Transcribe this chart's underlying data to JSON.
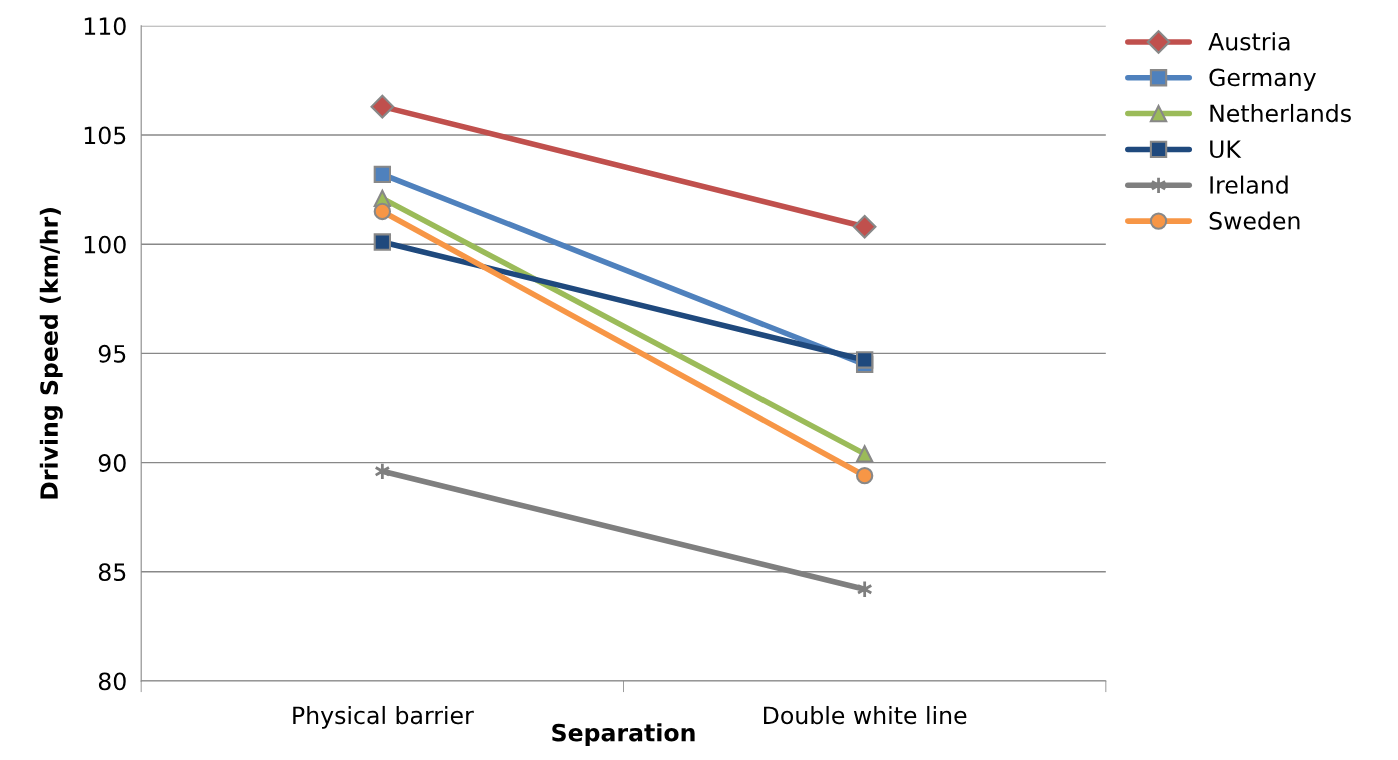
{
  "chart_data": {
    "type": "line",
    "xlabel": "Separation",
    "ylabel": "Driving Speed (km/hr)",
    "categories": [
      "Physical barrier",
      "Double white line"
    ],
    "series": [
      {
        "name": "Austria",
        "color": "#c0504d",
        "marker": "diamond",
        "values": [
          106.3,
          100.8
        ]
      },
      {
        "name": "Germany",
        "color": "#4f81bd",
        "marker": "square",
        "values": [
          103.2,
          94.5
        ]
      },
      {
        "name": "Netherlands",
        "color": "#9bbb59",
        "marker": "triangle",
        "values": [
          102.1,
          90.4
        ]
      },
      {
        "name": "UK",
        "color": "#1f497d",
        "marker": "square",
        "values": [
          100.1,
          94.7
        ]
      },
      {
        "name": "Ireland",
        "color": "#7f7f7f",
        "marker": "cross",
        "values": [
          89.6,
          84.2
        ]
      },
      {
        "name": "Sweden",
        "color": "#f79646",
        "marker": "circle",
        "values": [
          101.5,
          89.4
        ]
      }
    ],
    "ylim": [
      80,
      110
    ],
    "yticks": [
      80,
      85,
      90,
      95,
      100,
      105,
      110
    ],
    "grid": "y",
    "legend": "top right",
    "line_style": "solid"
  }
}
